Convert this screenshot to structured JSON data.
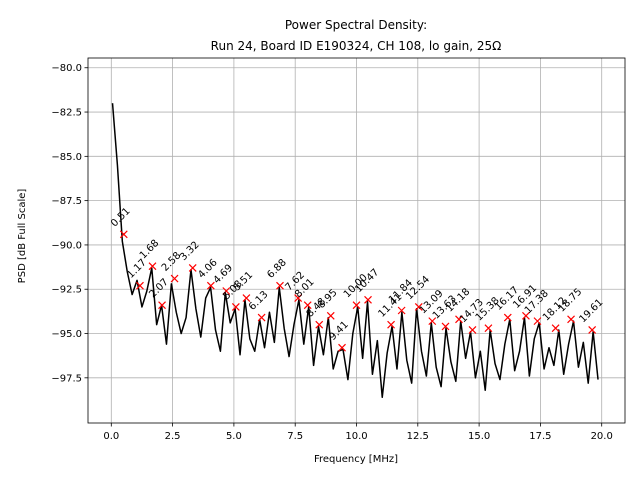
{
  "chart_data": {
    "type": "line",
    "title": [
      "Power Spectral Density:",
      "Run 24, Board ID E190324, CH 108, lo gain, 25Ω"
    ],
    "x_label": "Frequency [MHz]",
    "y_label": "PSD [dB Full Scale]",
    "xlim": [
      -0.95,
      20.95
    ],
    "ylim": [
      -100.05,
      -79.45
    ],
    "xticks": [
      {
        "value": 0,
        "label": "0.0"
      },
      2.5,
      {
        "value": 5,
        "label": "5.0"
      },
      7.5,
      {
        "value": 10,
        "label": "10.0"
      },
      12.5,
      {
        "value": 15,
        "label": "15.0"
      },
      17.5,
      {
        "value": 20,
        "label": "20.0"
      }
    ],
    "yticks": [
      {
        "value": -97.5,
        "label": "−97.5"
      },
      {
        "value": -95,
        "label": "−95.0"
      },
      {
        "value": -92.5,
        "label": "−92.5"
      },
      {
        "value": -90,
        "label": "−90.0"
      },
      {
        "value": -87.5,
        "label": "−87.5"
      },
      {
        "value": -85,
        "label": "−85.0"
      },
      {
        "value": -82.5,
        "label": "−82.5"
      },
      {
        "value": -80,
        "label": "−80.0"
      }
    ],
    "grid": true,
    "series": [
      {
        "color": "#000000",
        "x": [
          0.05,
          0.25,
          0.45,
          0.65,
          0.85,
          1.05,
          1.25,
          1.45,
          1.65,
          1.85,
          2.05,
          2.25,
          2.45,
          2.65,
          2.85,
          3.05,
          3.25,
          3.45,
          3.65,
          3.85,
          4.05,
          4.25,
          4.45,
          4.65,
          4.85,
          5.05,
          5.25,
          5.45,
          5.65,
          5.85,
          6.05,
          6.25,
          6.45,
          6.65,
          6.85,
          7.05,
          7.25,
          7.45,
          7.65,
          7.85,
          8.05,
          8.25,
          8.45,
          8.65,
          8.85,
          9.05,
          9.25,
          9.45,
          9.65,
          9.85,
          10.05,
          10.25,
          10.45,
          10.65,
          10.85,
          11.05,
          11.25,
          11.45,
          11.65,
          11.85,
          12.05,
          12.25,
          12.45,
          12.65,
          12.85,
          13.05,
          13.25,
          13.45,
          13.65,
          13.85,
          14.05,
          14.25,
          14.45,
          14.65,
          14.85,
          15.05,
          15.25,
          15.45,
          15.65,
          15.85,
          16.05,
          16.25,
          16.45,
          16.65,
          16.85,
          17.05,
          17.25,
          17.45,
          17.65,
          17.85,
          18.05,
          18.25,
          18.45,
          18.65,
          18.85,
          19.05,
          19.25,
          19.45,
          19.65,
          19.85
        ],
        "values": [
          -82.0,
          -85.5,
          -89.8,
          -91.5,
          -92.8,
          -92.0,
          -93.5,
          -92.6,
          -91.3,
          -94.5,
          -93.4,
          -95.6,
          -92.2,
          -93.8,
          -95.0,
          -94.1,
          -91.4,
          -93.6,
          -95.2,
          -93.0,
          -92.4,
          -94.8,
          -96.0,
          -92.7,
          -94.4,
          -93.6,
          -96.2,
          -93.1,
          -95.3,
          -96.0,
          -94.2,
          -95.8,
          -93.8,
          -95.5,
          -92.4,
          -94.7,
          -96.3,
          -94.5,
          -93.1,
          -95.6,
          -93.5,
          -96.8,
          -94.6,
          -96.2,
          -94.1,
          -97.0,
          -96.0,
          -95.9,
          -97.6,
          -95.0,
          -93.5,
          -96.4,
          -93.2,
          -97.3,
          -95.4,
          -98.6,
          -96.1,
          -94.6,
          -97.0,
          -93.8,
          -96.5,
          -97.8,
          -93.6,
          -96.0,
          -97.4,
          -94.4,
          -96.9,
          -98.0,
          -94.7,
          -96.6,
          -97.7,
          -94.3,
          -96.4,
          -94.9,
          -97.5,
          -96.0,
          -98.2,
          -94.8,
          -96.7,
          -97.6,
          -95.6,
          -94.2,
          -97.1,
          -96.0,
          -94.1,
          -97.4,
          -95.3,
          -94.4,
          -97.0,
          -95.8,
          -96.8,
          -94.8,
          -97.3,
          -95.6,
          -94.3,
          -96.9,
          -95.5,
          -97.8,
          -94.9,
          -97.6
        ]
      },
      {
        "color": "#ff0000",
        "marker": "x",
        "x": [
          0.51,
          1.17,
          1.68,
          2.07,
          2.58,
          3.32,
          4.06,
          4.69,
          5.08,
          5.51,
          6.13,
          6.88,
          7.62,
          8.01,
          8.48,
          8.95,
          9.41,
          10.0,
          10.47,
          11.41,
          11.84,
          12.54,
          13.09,
          13.63,
          14.18,
          14.73,
          15.38,
          16.17,
          16.91,
          17.38,
          18.12,
          18.75,
          19.61
        ],
        "x_labels": [
          "0.51",
          "1.17",
          "1.68",
          "2.07",
          "2.58",
          "3.32",
          "4.06",
          "4.69",
          "5.08",
          "5.51",
          "6.13",
          "6.88",
          "7.62",
          "8.01",
          "8.48",
          "8.95",
          "9.41",
          "10.00",
          "10.47",
          "11.41",
          "11.84",
          "12.54",
          "13.09",
          "13.63",
          "14.18",
          "14.73",
          "15.38",
          "16.17",
          "16.91",
          "17.38",
          "18.12",
          "18.75",
          "19.61"
        ],
        "values": [
          -89.4,
          -92.3,
          -91.2,
          -93.4,
          -91.9,
          -91.3,
          -92.3,
          -92.6,
          -93.5,
          -93.0,
          -94.1,
          -92.3,
          -93.0,
          -93.4,
          -94.5,
          -94.0,
          -95.8,
          -93.4,
          -93.1,
          -94.5,
          -93.7,
          -93.5,
          -94.3,
          -94.6,
          -94.2,
          -94.8,
          -94.7,
          -94.1,
          -94.0,
          -94.3,
          -94.7,
          -94.2,
          -94.8
        ]
      }
    ]
  }
}
